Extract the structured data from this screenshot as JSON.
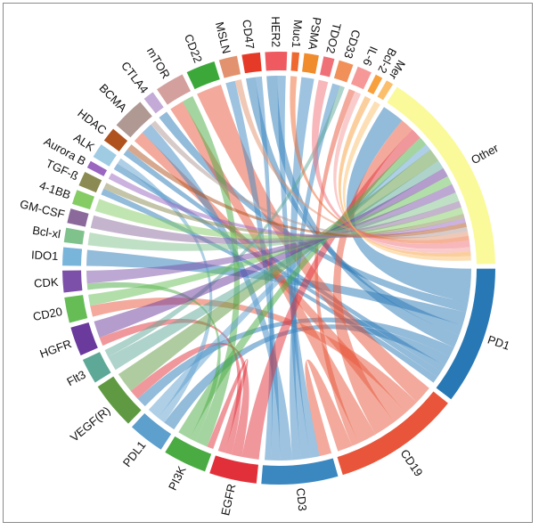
{
  "diagram": {
    "type": "chord",
    "sectors": [
      {
        "name": "PD1",
        "size": 38,
        "color": "#2878b6"
      },
      {
        "name": "CD19",
        "size": 35,
        "color": "#e8553a"
      },
      {
        "name": "CD3",
        "size": 21,
        "color": "#3b88c1"
      },
      {
        "name": "EGFR",
        "size": 13,
        "color": "#e2303a"
      },
      {
        "name": "PI3K",
        "size": 12,
        "color": "#4aab42"
      },
      {
        "name": "PDL1",
        "size": 10,
        "color": "#5d9fcd"
      },
      {
        "name": "VEGF(R)",
        "size": 13,
        "color": "#5f9a42"
      },
      {
        "name": "Flt3",
        "size": 7,
        "color": "#5ea898"
      },
      {
        "name": "HGFR",
        "size": 8,
        "color": "#6a3a9c"
      },
      {
        "name": "CD20",
        "size": 7,
        "color": "#66bd55"
      },
      {
        "name": "CDK",
        "size": 6,
        "color": "#7c4fa8"
      },
      {
        "name": "IDO1",
        "size": 5,
        "color": "#79b4da"
      },
      {
        "name": "Bcl-xl",
        "size": 4,
        "color": "#80c28c"
      },
      {
        "name": "GM-CSF",
        "size": 4,
        "color": "#8b6a9b"
      },
      {
        "name": "4-1BB",
        "size": 4,
        "color": "#84cc63"
      },
      {
        "name": "TGF-ß",
        "size": 4,
        "color": "#8a8a52"
      },
      {
        "name": "Aurora B",
        "size": 2,
        "color": "#9966c0"
      },
      {
        "name": "ALK",
        "size": 4,
        "color": "#9fcbe3"
      },
      {
        "name": "HDAC",
        "size": 4,
        "color": "#b0521e"
      },
      {
        "name": "BCMA",
        "size": 9,
        "color": "#b09893"
      },
      {
        "name": "CTLA4",
        "size": 3,
        "color": "#c4abd7"
      },
      {
        "name": "mTOR",
        "size": 8,
        "color": "#d4a09e"
      },
      {
        "name": "CD22",
        "size": 8,
        "color": "#3ca83a"
      },
      {
        "name": "MSLN",
        "size": 5,
        "color": "#e2926e"
      },
      {
        "name": "CD47",
        "size": 5,
        "color": "#e63a28"
      },
      {
        "name": "HER2",
        "size": 6,
        "color": "#ee5a5f"
      },
      {
        "name": "Muc1",
        "size": 2,
        "color": "#ee6830"
      },
      {
        "name": "PSMA",
        "size": 4,
        "color": "#f08c2c"
      },
      {
        "name": "TDO2",
        "size": 3,
        "color": "#f07078"
      },
      {
        "name": "CD33",
        "size": 4,
        "color": "#f2905a"
      },
      {
        "name": "IL-6",
        "size": 4,
        "color": "#f69898"
      },
      {
        "name": "Bcl-2",
        "size": 2,
        "color": "#f8a03c"
      },
      {
        "name": "Mer",
        "size": 2,
        "color": "#fbbf6c"
      },
      {
        "name": "Other",
        "size": 57,
        "color": "#fafa9a"
      }
    ],
    "links": [
      [
        "PD1",
        "Other",
        10
      ],
      [
        "PD1",
        "CTLA4",
        3
      ],
      [
        "PD1",
        "IDO1",
        4
      ],
      [
        "PD1",
        "CD47",
        3
      ],
      [
        "PD1",
        "HER2",
        4
      ],
      [
        "PD1",
        "VEGF(R)",
        3
      ],
      [
        "PD1",
        "PDL1",
        3
      ],
      [
        "PD1",
        "HDAC",
        2
      ],
      [
        "PD1",
        "ALK",
        2
      ],
      [
        "PD1",
        "TGF-ß",
        2
      ],
      [
        "CD19",
        "CD22",
        5
      ],
      [
        "CD19",
        "CD20",
        4
      ],
      [
        "CD19",
        "BCMA",
        4
      ],
      [
        "CD19",
        "Other",
        6
      ],
      [
        "CD19",
        "mTOR",
        5
      ],
      [
        "CD19",
        "IL-6",
        2
      ],
      [
        "CD19",
        "CD3",
        4
      ],
      [
        "CD3",
        "HER2",
        3
      ],
      [
        "CD3",
        "PSMA",
        3
      ],
      [
        "CD3",
        "CD33",
        3
      ],
      [
        "CD3",
        "BCMA",
        4
      ],
      [
        "CD3",
        "MSLN",
        3
      ],
      [
        "CD3",
        "CD47",
        2
      ],
      [
        "EGFR",
        "Other",
        5
      ],
      [
        "EGFR",
        "VEGF(R)",
        3
      ],
      [
        "EGFR",
        "HGFR",
        2
      ],
      [
        "EGFR",
        "PI3K",
        2
      ],
      [
        "PI3K",
        "mTOR",
        4
      ],
      [
        "PI3K",
        "CDK",
        2
      ],
      [
        "PI3K",
        "Other",
        4
      ],
      [
        "PDL1",
        "ALK",
        2
      ],
      [
        "PDL1",
        "Other",
        3
      ],
      [
        "VEGF(R)",
        "Other",
        6
      ],
      [
        "Flt3",
        "Other",
        4
      ],
      [
        "Flt3",
        "CD33",
        2
      ],
      [
        "HGFR",
        "Other",
        4
      ],
      [
        "CD20",
        "Other",
        4
      ],
      [
        "CDK",
        "Other",
        4
      ],
      [
        "Bcl-xl",
        "Other",
        4
      ],
      [
        "GM-CSF",
        "Other",
        3
      ],
      [
        "4-1BB",
        "Other",
        3
      ],
      [
        "TGF-ß",
        "Other",
        2
      ],
      [
        "Aurora B",
        "Other",
        2
      ],
      [
        "HDAC",
        "Other",
        2
      ],
      [
        "BCMA",
        "Other",
        2
      ],
      [
        "MSLN",
        "Other",
        2
      ],
      [
        "Muc1",
        "Other",
        2
      ],
      [
        "TDO2",
        "Other",
        3
      ],
      [
        "IL-6",
        "Other",
        2
      ],
      [
        "Bcl-2",
        "Other",
        2
      ],
      [
        "Mer",
        "Other",
        2
      ]
    ]
  }
}
